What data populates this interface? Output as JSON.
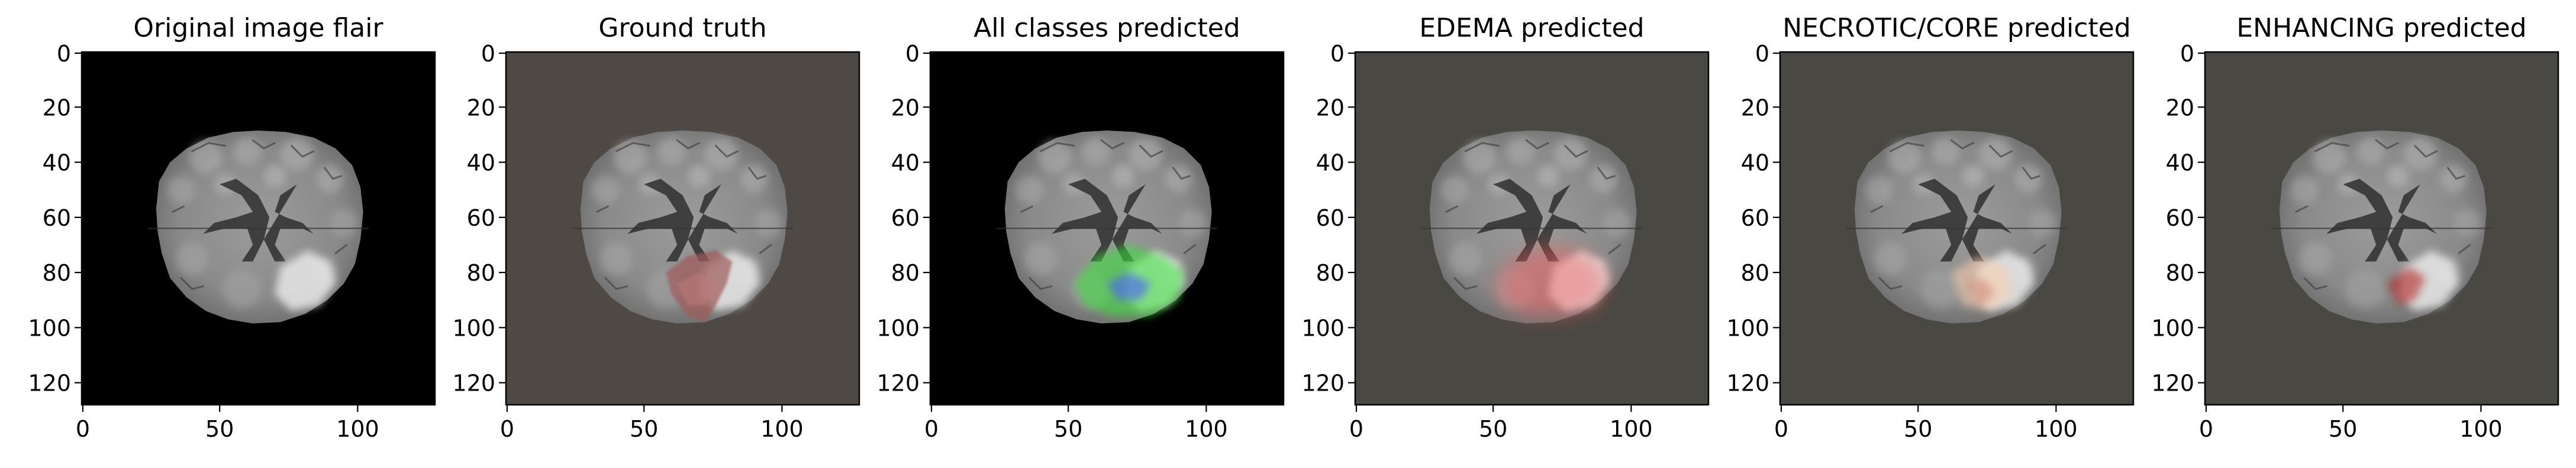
{
  "figure": {
    "panels": [
      {
        "title": "Original image flair",
        "overlay": "none",
        "background": "#000000",
        "x_ticks": [
          "0",
          "50",
          "100"
        ],
        "y_ticks": [
          "0",
          "20",
          "40",
          "60",
          "80",
          "100",
          "120"
        ]
      },
      {
        "title": "Ground truth",
        "overlay": "ground-truth",
        "background": "#4f4946",
        "x_ticks": [
          "0",
          "50",
          "100"
        ],
        "y_ticks": [
          "0",
          "20",
          "40",
          "60",
          "80",
          "100",
          "120"
        ]
      },
      {
        "title": "All classes predicted",
        "overlay": "all-classes",
        "background": "#000000",
        "x_ticks": [
          "0",
          "50",
          "100"
        ],
        "y_ticks": [
          "0",
          "20",
          "40",
          "60",
          "80",
          "100",
          "120"
        ]
      },
      {
        "title": "EDEMA predicted",
        "overlay": "edema",
        "background": "#4a4843",
        "x_ticks": [
          "0",
          "50",
          "100"
        ],
        "y_ticks": [
          "0",
          "20",
          "40",
          "60",
          "80",
          "100",
          "120"
        ]
      },
      {
        "title": "NECROTIC/CORE predicted",
        "overlay": "necrotic",
        "background": "#4a4843",
        "x_ticks": [
          "0",
          "50",
          "100"
        ],
        "y_ticks": [
          "0",
          "20",
          "40",
          "60",
          "80",
          "100",
          "120"
        ]
      },
      {
        "title": "ENHANCING predicted",
        "overlay": "enhancing",
        "background": "#4a4843",
        "x_ticks": [
          "0",
          "50",
          "100"
        ],
        "y_ticks": [
          "0",
          "20",
          "40",
          "60",
          "80",
          "100",
          "120"
        ]
      }
    ],
    "colors": {
      "edema": "#ff5a5a",
      "necrotic": "#ffd0b0",
      "enhancing": "#b01818",
      "all_green": "#39e639",
      "all_blue": "#4a5cff",
      "gt": "#a05a5a",
      "text": "#000000",
      "axis": "#000000"
    }
  }
}
